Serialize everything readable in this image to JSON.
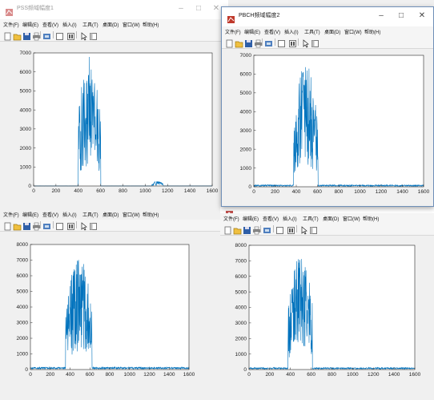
{
  "figure_tl": {
    "title": "PSS频域幅度1",
    "minimize": "–",
    "maximize": "□",
    "close": "✕"
  },
  "figure_tr": {
    "title": "PBCH频域幅度2",
    "minimize": "–",
    "maximize": "□",
    "close": "✕"
  },
  "menus": {
    "tl": [
      "文件(F)",
      "编辑(E)",
      "查看(V)",
      "插入(I)",
      "工具(T)",
      "桌面(D)",
      "窗口(W)",
      "帮助(H)"
    ],
    "tr": [
      "文件(F)",
      "编辑(E)",
      "查看(V)",
      "插入(I)",
      "工具(T)",
      "桌面(D)",
      "窗口(W)",
      "帮助(H)"
    ],
    "bl": [
      "文件(F)",
      "编辑(E)",
      "查看(V)",
      "插入(I)",
      "工具(T)",
      "桌面(D)",
      "窗口(W)",
      "帮助(H)"
    ],
    "br": [
      "文件(F)",
      "编辑(E)",
      "查看(V)",
      "插入(I)",
      "工具(T)",
      "桌面(D)",
      "窗口(W)",
      "帮助(H)"
    ]
  },
  "toolbar_icons": [
    "new-figure-icon",
    "open-file-icon",
    "save-icon",
    "print-icon",
    "export-icon",
    "toggle-plot-tools-icon",
    "insert-colorbar-icon",
    "pointer-icon",
    "show-plot-tools-icon"
  ],
  "colors": {
    "line": "#0072bd",
    "axes_bg": "#ffffff",
    "window_bg": "#f0f0f0",
    "frame": "#6f8fb8"
  },
  "chart_data": [
    {
      "type": "line",
      "x_range": [
        0,
        1600
      ],
      "xlim": [
        0,
        1600
      ],
      "ylim": [
        0,
        7000
      ],
      "x_ticks": [
        0,
        200,
        400,
        600,
        800,
        1000,
        1200,
        1400,
        1600
      ],
      "y_ticks": [
        0,
        1000,
        2000,
        3000,
        4000,
        5000,
        6000,
        7000
      ],
      "grid": false,
      "bursts": [
        {
          "from": 400,
          "to": 600,
          "peak": 6800,
          "center": 500
        },
        {
          "from": 1060,
          "to": 1160,
          "peak": 250,
          "center": 1110
        }
      ],
      "noise_floor": 5
    },
    {
      "type": "line",
      "x_range": [
        0,
        1600
      ],
      "xlim": [
        0,
        1600
      ],
      "ylim": [
        0,
        7000
      ],
      "x_ticks": [
        0,
        200,
        400,
        600,
        800,
        1000,
        1200,
        1400,
        1600
      ],
      "y_ticks": [
        0,
        1000,
        2000,
        3000,
        4000,
        5000,
        6000,
        7000
      ],
      "grid": false,
      "bursts": [
        {
          "from": 375,
          "to": 605,
          "peak": 6500,
          "center": 490
        }
      ],
      "noise_floor": 80
    },
    {
      "type": "line",
      "x_range": [
        0,
        1600
      ],
      "xlim": [
        0,
        1600
      ],
      "ylim": [
        0,
        8000
      ],
      "x_ticks": [
        0,
        200,
        400,
        600,
        800,
        1000,
        1200,
        1400,
        1600
      ],
      "y_ticks": [
        0,
        1000,
        2000,
        3000,
        4000,
        5000,
        6000,
        7000,
        8000
      ],
      "grid": false,
      "bursts": [
        {
          "from": 355,
          "to": 620,
          "peak": 7200,
          "center": 490
        }
      ],
      "noise_floor": 120
    },
    {
      "type": "line",
      "x_range": [
        0,
        1600
      ],
      "xlim": [
        0,
        1600
      ],
      "ylim": [
        0,
        8000
      ],
      "x_ticks": [
        0,
        200,
        400,
        600,
        800,
        1000,
        1200,
        1400,
        1600
      ],
      "y_ticks": [
        0,
        1000,
        2000,
        3000,
        4000,
        5000,
        6000,
        7000,
        8000
      ],
      "grid": false,
      "bursts": [
        {
          "from": 375,
          "to": 610,
          "peak": 7500,
          "center": 500
        }
      ],
      "noise_floor": 100
    }
  ]
}
